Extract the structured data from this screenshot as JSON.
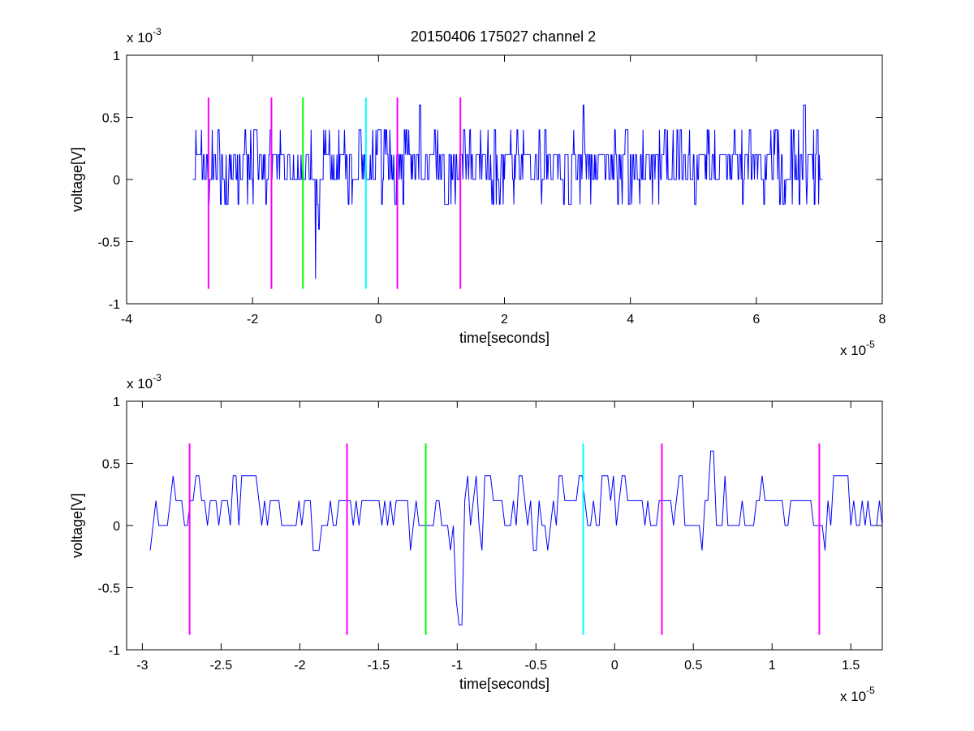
{
  "figure": {
    "title": "20150406 175027 channel 2"
  },
  "chart_data": [
    {
      "type": "line",
      "title": "20150406 175027 channel 2",
      "xlabel": "time[seconds]",
      "ylabel": "voltage[V]",
      "x_multiplier": "x 10",
      "x_exponent": "-5",
      "y_multiplier": "x 10",
      "y_exponent": "-3",
      "xlim": [
        -4,
        8
      ],
      "ylim": [
        -1,
        1
      ],
      "x_ticks": [
        -4,
        -2,
        0,
        2,
        4,
        6,
        8
      ],
      "x_tick_labels": [
        "-4",
        "-2",
        "0",
        "2",
        "4",
        "6",
        "8"
      ],
      "y_ticks": [
        -1,
        -0.5,
        0,
        0.5,
        1
      ],
      "y_tick_labels": [
        "-1",
        "-0.5",
        "0",
        "0.5",
        "1"
      ],
      "grid": false,
      "signal": {
        "color": "#0000ff",
        "x_start": -2.95,
        "x_end": 7.05,
        "levels": [
          -0.2,
          0,
          0.2,
          0.4
        ],
        "spikes": [
          {
            "x": -1.0,
            "y": -0.8
          },
          {
            "x": -0.95,
            "y": -0.4
          },
          {
            "x": 0.65,
            "y": 0.6
          },
          {
            "x": 3.25,
            "y": 0.6
          },
          {
            "x": 6.75,
            "y": 0.6
          },
          {
            "x": 1.35,
            "y": 0.4
          },
          {
            "x": 3.1,
            "y": 0.4
          }
        ]
      },
      "markers": [
        {
          "x": -2.7,
          "color": "#ff00ff",
          "y_low": -0.88,
          "y_high": 0.66
        },
        {
          "x": -1.7,
          "color": "#ff00ff",
          "y_low": -0.88,
          "y_high": 0.66
        },
        {
          "x": -1.2,
          "color": "#00ff00",
          "y_low": -0.88,
          "y_high": 0.66
        },
        {
          "x": -0.2,
          "color": "#00ffff",
          "y_low": -0.88,
          "y_high": 0.66
        },
        {
          "x": 0.3,
          "color": "#ff00ff",
          "y_low": -0.88,
          "y_high": 0.66
        },
        {
          "x": 1.3,
          "color": "#ff00ff",
          "y_low": -0.88,
          "y_high": 0.66
        }
      ]
    },
    {
      "type": "line",
      "title": "",
      "xlabel": "time[seconds]",
      "ylabel": "voltage[V]",
      "x_multiplier": "x 10",
      "x_exponent": "-5",
      "y_multiplier": "x 10",
      "y_exponent": "-3",
      "xlim": [
        -3.1,
        1.7
      ],
      "ylim": [
        -1,
        1
      ],
      "x_ticks": [
        -3,
        -2.5,
        -2,
        -1.5,
        -1,
        -0.5,
        0,
        0.5,
        1,
        1.5
      ],
      "x_tick_labels": [
        "-3",
        "-2.5",
        "-2",
        "-1.5",
        "-1",
        "-0.5",
        "0",
        "0.5",
        "1",
        "1.5"
      ],
      "y_ticks": [
        -1,
        -0.5,
        0,
        0.5,
        1
      ],
      "y_tick_labels": [
        "-1",
        "-0.5",
        "0",
        "0.5",
        "1"
      ],
      "grid": false,
      "signal": {
        "color": "#0000ff",
        "x_start": -2.95,
        "x_end": 1.7,
        "levels": [
          -0.2,
          0,
          0.2,
          0.4
        ],
        "spikes": [
          {
            "x": -0.98,
            "y": -0.8
          },
          {
            "x": -1.0,
            "y": -0.6
          },
          {
            "x": 0.62,
            "y": 0.6
          },
          {
            "x": -1.3,
            "y": -0.2
          }
        ]
      },
      "markers": [
        {
          "x": -2.7,
          "color": "#ff00ff",
          "y_low": -0.88,
          "y_high": 0.66
        },
        {
          "x": -1.7,
          "color": "#ff00ff",
          "y_low": -0.88,
          "y_high": 0.66
        },
        {
          "x": -1.2,
          "color": "#00ff00",
          "y_low": -0.88,
          "y_high": 0.66
        },
        {
          "x": -0.2,
          "color": "#00ffff",
          "y_low": -0.88,
          "y_high": 0.66
        },
        {
          "x": 0.3,
          "color": "#ff00ff",
          "y_low": -0.88,
          "y_high": 0.66
        },
        {
          "x": 1.3,
          "color": "#ff00ff",
          "y_low": -0.88,
          "y_high": 0.66
        }
      ]
    }
  ]
}
